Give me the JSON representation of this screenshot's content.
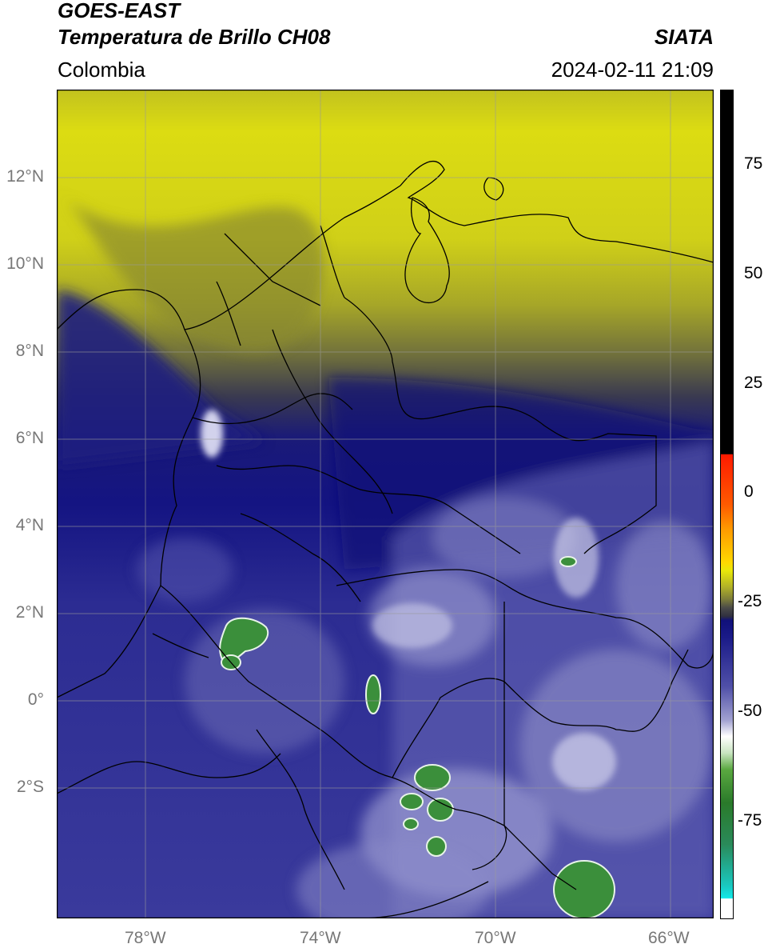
{
  "header": {
    "title_line1": "GOES-EAST",
    "title_line2": "Temperatura de Brillo CH08",
    "region": "Colombia",
    "source": "SIATA",
    "datetime": "2024-02-11 21:09"
  },
  "map": {
    "lat_ticks": [
      "12°N",
      "10°N",
      "8°N",
      "6°N",
      "4°N",
      "2°N",
      "0°",
      "2°S"
    ],
    "lon_ticks": [
      "78°W",
      "74°W",
      "70°W",
      "66°W"
    ],
    "extent": {
      "lon_min": -80,
      "lon_max": -65,
      "lat_min": -5,
      "lat_max": 14
    }
  },
  "colorbar": {
    "ticks": [
      "75",
      "50",
      "25",
      "0",
      "-25",
      "-50",
      "-75"
    ],
    "colors": {
      "black": "#000000",
      "red": "#ff2a00",
      "orange": "#ff9a00",
      "yellow": "#e8e80a",
      "olive": "#8a8a30",
      "gray": "#3c3c48",
      "navy": "#14147e",
      "blue": "#4a4aa8",
      "lavender": "#a0a0d0",
      "white": "#ffffff",
      "green": "#2f8a2f",
      "cyan": "#11e0e0"
    }
  }
}
